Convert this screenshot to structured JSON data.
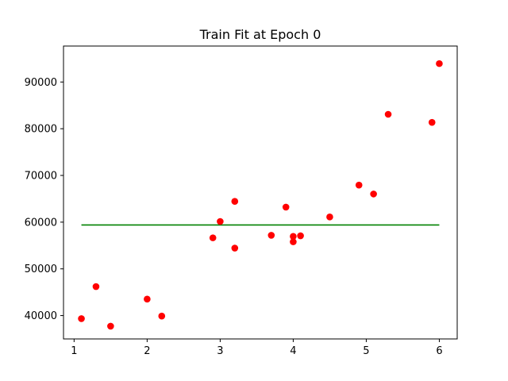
{
  "chart_data": {
    "type": "scatter",
    "title": "Train Fit at Epoch 0",
    "xlabel": "",
    "ylabel": "",
    "xlim": [
      0.855,
      6.245
    ],
    "ylim": [
      35000,
      97700
    ],
    "x_ticks": [
      1,
      2,
      3,
      4,
      5,
      6
    ],
    "y_ticks": [
      40000,
      50000,
      60000,
      70000,
      80000,
      90000
    ],
    "x_tick_labels": [
      "1",
      "2",
      "3",
      "4",
      "5",
      "6"
    ],
    "y_tick_labels": [
      "40000",
      "50000",
      "60000",
      "70000",
      "80000",
      "90000"
    ],
    "grid": false,
    "legend": "none",
    "series": [
      {
        "kind": "scatter",
        "color": "#ff0000",
        "points": [
          {
            "x": 1.1,
            "y": 39343
          },
          {
            "x": 1.3,
            "y": 46205
          },
          {
            "x": 1.5,
            "y": 37731
          },
          {
            "x": 2.0,
            "y": 43525
          },
          {
            "x": 2.2,
            "y": 39891
          },
          {
            "x": 2.9,
            "y": 56642
          },
          {
            "x": 3.0,
            "y": 60150
          },
          {
            "x": 3.2,
            "y": 54445
          },
          {
            "x": 3.2,
            "y": 64445
          },
          {
            "x": 3.7,
            "y": 57189
          },
          {
            "x": 3.9,
            "y": 63218
          },
          {
            "x": 4.0,
            "y": 55794
          },
          {
            "x": 4.0,
            "y": 56957
          },
          {
            "x": 4.1,
            "y": 57081
          },
          {
            "x": 4.5,
            "y": 61111
          },
          {
            "x": 4.9,
            "y": 67938
          },
          {
            "x": 5.1,
            "y": 66029
          },
          {
            "x": 5.3,
            "y": 83088
          },
          {
            "x": 5.9,
            "y": 81363
          },
          {
            "x": 6.0,
            "y": 93940
          }
        ]
      },
      {
        "kind": "line",
        "color": "#008000",
        "points": [
          {
            "x": 1.1,
            "y": 59400
          },
          {
            "x": 6.0,
            "y": 59400
          }
        ]
      }
    ]
  }
}
